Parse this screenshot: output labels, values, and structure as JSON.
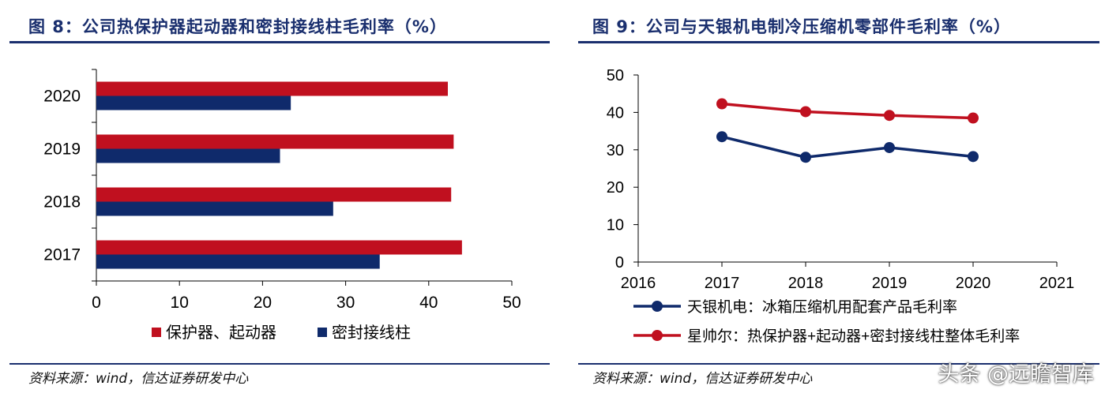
{
  "left_panel": {
    "title": "图 8：公司热保护器起动器和密封接线柱毛利率（%）",
    "source": "资料来源：wind，信达证券研发中心"
  },
  "right_panel": {
    "title": "图 9：公司与天银机电制冷压缩机零部件毛利率（%）",
    "source": "资料来源：wind，信达证券研发中心"
  },
  "watermark": "头条 @远瞻智库",
  "chart_data": [
    {
      "type": "bar",
      "orientation": "horizontal",
      "categories": [
        "2020",
        "2019",
        "2018",
        "2017"
      ],
      "series": [
        {
          "name": "保护器、起动器",
          "color": "#c0101f",
          "values": [
            42.3,
            43.0,
            42.7,
            44.0
          ]
        },
        {
          "name": "密封接线柱",
          "color": "#0f2a6b",
          "values": [
            23.4,
            22.1,
            28.5,
            34.1
          ]
        }
      ],
      "xlim": [
        0,
        50
      ],
      "xticks": [
        "0",
        "10",
        "20",
        "30",
        "40",
        "50"
      ],
      "legend_position": "bottom"
    },
    {
      "type": "line",
      "x": [
        2017,
        2018,
        2019,
        2020
      ],
      "series": [
        {
          "name": "天银机电：冰箱压缩机用配套产品毛利率",
          "color": "#0f2a6b",
          "values": [
            33.5,
            28.0,
            30.6,
            28.2
          ]
        },
        {
          "name": "星帅尔：热保护器+起动器+密封接线柱整体毛利率",
          "color": "#c0101f",
          "values": [
            42.3,
            40.2,
            39.2,
            38.5
          ]
        }
      ],
      "xlim": [
        2016,
        2021
      ],
      "ylim": [
        0,
        50
      ],
      "xticks": [
        "2016",
        "2017",
        "2018",
        "2019",
        "2020",
        "2021"
      ],
      "yticks": [
        "0",
        "10",
        "20",
        "30",
        "40",
        "50"
      ],
      "legend_position": "bottom"
    }
  ]
}
